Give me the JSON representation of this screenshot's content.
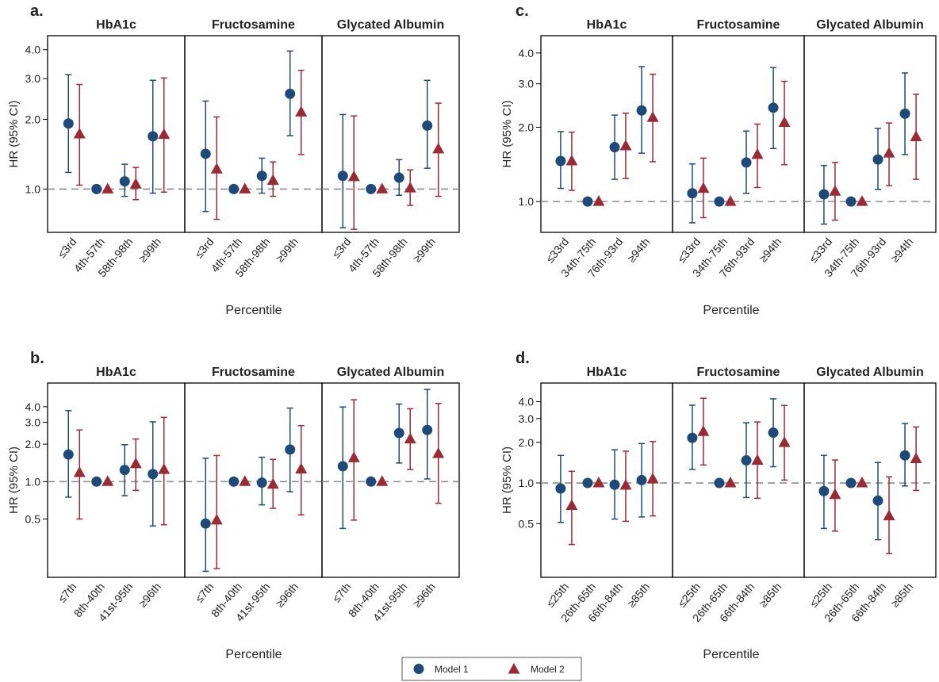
{
  "colors": {
    "model1": "#1d4a78",
    "model2": "#9a2b34",
    "frame": "#000000",
    "ref_line": "#8c8c8c"
  },
  "legend": {
    "model1_label": "Model 1",
    "model2_label": "Model 2",
    "model1_marker": "circle",
    "model2_marker": "triangle"
  },
  "chart_data": [
    {
      "id": "a",
      "letter": "a.",
      "type": "scatter",
      "scale": "log",
      "ylim": [
        0.65,
        4.6
      ],
      "yticks": [
        1.0,
        2.0,
        3.0,
        4.0
      ],
      "ytick_labels": [
        "1.0",
        "2.0",
        "3.0",
        "4.0"
      ],
      "ylabel": "HR (95% CI)",
      "xlabel": "Percentile",
      "reference_line": 1.0,
      "panels": [
        {
          "title": "HbA1c",
          "categories": [
            "≤3rd",
            "4th-57th",
            "58th-98th",
            "≥99th"
          ],
          "model1": [
            [
              1.92,
              1.18,
              3.12
            ],
            [
              1.0,
              1.0,
              1.0
            ],
            [
              1.08,
              0.93,
              1.28
            ],
            [
              1.69,
              0.96,
              2.95
            ]
          ],
          "model2": [
            [
              1.73,
              1.04,
              2.83
            ],
            [
              1.0,
              1.0,
              1.0
            ],
            [
              1.05,
              0.9,
              1.24
            ],
            [
              1.72,
              0.97,
              3.02
            ]
          ]
        },
        {
          "title": "Fructosamine",
          "categories": [
            "≤3rd",
            "4th-57th",
            "58th-98th",
            "≥99th"
          ],
          "model1": [
            [
              1.42,
              0.8,
              2.4
            ],
            [
              1.0,
              1.0,
              1.0
            ],
            [
              1.14,
              0.96,
              1.36
            ],
            [
              2.58,
              1.7,
              3.95
            ]
          ],
          "model2": [
            [
              1.22,
              0.74,
              2.05
            ],
            [
              1.0,
              1.0,
              1.0
            ],
            [
              1.09,
              0.93,
              1.31
            ],
            [
              2.15,
              1.41,
              3.26
            ]
          ]
        },
        {
          "title": "Glycated Albumin",
          "categories": [
            "≤3rd",
            "4th-57th",
            "58th-98th",
            "≥99th"
          ],
          "model1": [
            [
              1.14,
              0.68,
              2.1
            ],
            [
              1.0,
              1.0,
              1.0
            ],
            [
              1.12,
              0.94,
              1.34
            ],
            [
              1.88,
              1.23,
              2.95
            ]
          ],
          "model2": [
            [
              1.13,
              0.67,
              2.07
            ],
            [
              1.0,
              1.0,
              1.0
            ],
            [
              1.01,
              0.85,
              1.21
            ],
            [
              1.49,
              0.93,
              2.35
            ]
          ]
        }
      ]
    },
    {
      "id": "b",
      "letter": "b.",
      "type": "scatter",
      "scale": "log",
      "ylim": [
        0.17,
        6.2
      ],
      "yticks": [
        0.5,
        1.0,
        2.0,
        3.0,
        4.0
      ],
      "ytick_labels": [
        "0.5",
        "1.0",
        "2.0",
        "3.0",
        "4.0"
      ],
      "ylabel": "HR (95% CI)",
      "xlabel": "Percentile",
      "reference_line": 1.0,
      "panels": [
        {
          "title": "HbA1c",
          "categories": [
            "≤7th",
            "8th-40th",
            "41st-95th",
            "≥96th"
          ],
          "model1": [
            [
              1.65,
              0.75,
              3.72
            ],
            [
              1.0,
              1.0,
              1.0
            ],
            [
              1.24,
              0.77,
              1.98
            ],
            [
              1.15,
              0.44,
              3.02
            ]
          ],
          "model2": [
            [
              1.18,
              0.5,
              2.6
            ],
            [
              1.0,
              1.0,
              1.0
            ],
            [
              1.39,
              0.85,
              2.2
            ],
            [
              1.25,
              0.45,
              3.28
            ]
          ]
        },
        {
          "title": "Fructosamine",
          "categories": [
            "≤7th",
            "8th-40th",
            "41st-95th",
            "≥96th"
          ],
          "model1": [
            [
              0.46,
              0.19,
              1.54
            ],
            [
              1.0,
              1.0,
              1.0
            ],
            [
              0.98,
              0.65,
              1.57
            ],
            [
              1.81,
              0.83,
              3.9
            ]
          ],
          "model2": [
            [
              0.49,
              0.2,
              1.62
            ],
            [
              1.0,
              1.0,
              1.0
            ],
            [
              0.95,
              0.61,
              1.51
            ],
            [
              1.26,
              0.54,
              2.82
            ]
          ]
        },
        {
          "title": "Glycated Albumin",
          "categories": [
            "≤7th",
            "8th-40th",
            "41st-95th",
            "≥96th"
          ],
          "model1": [
            [
              1.33,
              0.42,
              3.98
            ],
            [
              1.0,
              1.0,
              1.0
            ],
            [
              2.46,
              1.41,
              4.2
            ],
            [
              2.6,
              1.05,
              5.5
            ]
          ],
          "model2": [
            [
              1.55,
              0.49,
              4.55
            ],
            [
              1.0,
              1.0,
              1.0
            ],
            [
              2.2,
              1.25,
              3.85
            ],
            [
              1.68,
              0.67,
              4.25
            ]
          ]
        }
      ]
    },
    {
      "id": "c",
      "letter": "c.",
      "type": "scatter",
      "scale": "log",
      "ylim": [
        0.75,
        4.7
      ],
      "yticks": [
        1.0,
        2.0,
        3.0,
        4.0
      ],
      "ytick_labels": [
        "1.0",
        "2.0",
        "3.0",
        "4.0"
      ],
      "ylabel": "HR (95% CI)",
      "xlabel": "Percentile",
      "reference_line": 1.0,
      "panels": [
        {
          "title": "HbA1c",
          "categories": [
            "≤33rd",
            "34th-75th",
            "76th-93rd",
            "≥94th"
          ],
          "model1": [
            [
              1.46,
              1.13,
              1.92
            ],
            [
              1.0,
              1.0,
              1.0
            ],
            [
              1.66,
              1.23,
              2.24
            ],
            [
              2.34,
              1.57,
              3.52
            ]
          ],
          "model2": [
            [
              1.46,
              1.11,
              1.91
            ],
            [
              1.0,
              1.0,
              1.0
            ],
            [
              1.68,
              1.24,
              2.28
            ],
            [
              2.19,
              1.45,
              3.28
            ]
          ]
        },
        {
          "title": "Fructosamine",
          "categories": [
            "≤33rd",
            "34th-75th",
            "76th-93rd",
            "≥94th"
          ],
          "model1": [
            [
              1.08,
              0.82,
              1.42
            ],
            [
              1.0,
              1.0,
              1.0
            ],
            [
              1.44,
              1.08,
              1.93
            ],
            [
              2.4,
              1.64,
              3.49
            ]
          ],
          "model2": [
            [
              1.13,
              0.86,
              1.5
            ],
            [
              1.0,
              1.0,
              1.0
            ],
            [
              1.55,
              1.14,
              2.06
            ],
            [
              2.09,
              1.41,
              3.07
            ]
          ]
        },
        {
          "title": "Glycated Albumin",
          "categories": [
            "≤33rd",
            "34th-75th",
            "76th-93rd",
            "≥94th"
          ],
          "model1": [
            [
              1.07,
              0.81,
              1.4
            ],
            [
              1.0,
              1.0,
              1.0
            ],
            [
              1.48,
              1.12,
              1.98
            ],
            [
              2.27,
              1.55,
              3.32
            ]
          ],
          "model2": [
            [
              1.1,
              0.84,
              1.44
            ],
            [
              1.0,
              1.0,
              1.0
            ],
            [
              1.57,
              1.16,
              2.08
            ],
            [
              1.83,
              1.23,
              2.72
            ]
          ]
        }
      ]
    },
    {
      "id": "d",
      "letter": "d.",
      "type": "scatter",
      "scale": "log",
      "ylim": [
        0.2,
        5.5
      ],
      "yticks": [
        0.5,
        1.0,
        2.0,
        3.0,
        4.0
      ],
      "ytick_labels": [
        "0.5",
        "1.0",
        "2.0",
        "3.0",
        "4.0"
      ],
      "ylabel": "HR (95% CI)",
      "xlabel": "Percentile",
      "reference_line": 1.0,
      "panels": [
        {
          "title": "HbA1c",
          "categories": [
            "≤25th",
            "26th-65th",
            "66th-84th",
            "≥85th"
          ],
          "model1": [
            [
              0.91,
              0.51,
              1.6
            ],
            [
              1.0,
              1.0,
              1.0
            ],
            [
              0.97,
              0.54,
              1.76
            ],
            [
              1.05,
              0.56,
              1.96
            ]
          ],
          "model2": [
            [
              0.68,
              0.35,
              1.22
            ],
            [
              1.0,
              1.0,
              1.0
            ],
            [
              0.96,
              0.52,
              1.72
            ],
            [
              1.07,
              0.57,
              2.03
            ]
          ]
        },
        {
          "title": "Fructosamine",
          "categories": [
            "≤25th",
            "26th-65th",
            "66th-84th",
            "≥85th"
          ],
          "model1": [
            [
              2.16,
              1.26,
              3.77
            ],
            [
              1.0,
              1.0,
              1.0
            ],
            [
              1.47,
              0.78,
              2.79
            ],
            [
              2.36,
              1.32,
              4.2
            ]
          ],
          "model2": [
            [
              2.4,
              1.36,
              4.24
            ],
            [
              1.0,
              1.0,
              1.0
            ],
            [
              1.47,
              0.77,
              2.83
            ],
            [
              1.99,
              1.05,
              3.75
            ]
          ]
        },
        {
          "title": "Glycated Albumin",
          "categories": [
            "≤25th",
            "26th-65th",
            "66th-84th",
            "≥85th"
          ],
          "model1": [
            [
              0.87,
              0.46,
              1.6
            ],
            [
              1.0,
              1.0,
              1.0
            ],
            [
              0.74,
              0.38,
              1.42
            ],
            [
              1.6,
              0.95,
              2.76
            ]
          ],
          "model2": [
            [
              0.82,
              0.44,
              1.48
            ],
            [
              1.0,
              1.0,
              1.0
            ],
            [
              0.57,
              0.3,
              1.11
            ],
            [
              1.51,
              0.88,
              2.6
            ]
          ]
        }
      ]
    }
  ]
}
